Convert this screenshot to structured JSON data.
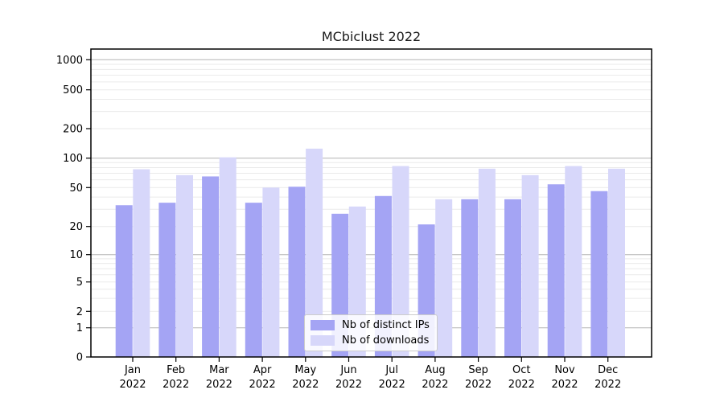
{
  "chart_data": {
    "type": "bar",
    "title": "MCbiclust 2022",
    "categories": [
      "Jan 2022",
      "Feb 2022",
      "Mar 2022",
      "Apr 2022",
      "May 2022",
      "Jun 2022",
      "Jul 2022",
      "Aug 2022",
      "Sep 2022",
      "Oct 2022",
      "Nov 2022",
      "Dec 2022"
    ],
    "series": [
      {
        "name": "Nb of distinct IPs",
        "color": "#a4a4f4",
        "values": [
          33,
          35,
          65,
          35,
          51,
          27,
          41,
          21,
          38,
          38,
          54,
          46
        ]
      },
      {
        "name": "Nb of downloads",
        "color": "#d7d7fa",
        "values": [
          77,
          67,
          102,
          50,
          125,
          32,
          83,
          38,
          78,
          67,
          83,
          78
        ]
      }
    ],
    "xlabel": "",
    "ylabel": "",
    "y_ticks": [
      0,
      1,
      2,
      5,
      10,
      20,
      50,
      100,
      200,
      500,
      1000
    ],
    "ylim": [
      0,
      1000
    ],
    "y_scale": "pseudo-log (log above 1, compressed 0-1 baseline)",
    "grid": "horizontal; dark lines at powers of 10, faint log minors",
    "legend_position": "lower center",
    "axis_color": "#000000",
    "major_grid_color": "#b3b3b3",
    "minor_grid_color": "#eaeaea",
    "tick_label_color": "#000000"
  }
}
